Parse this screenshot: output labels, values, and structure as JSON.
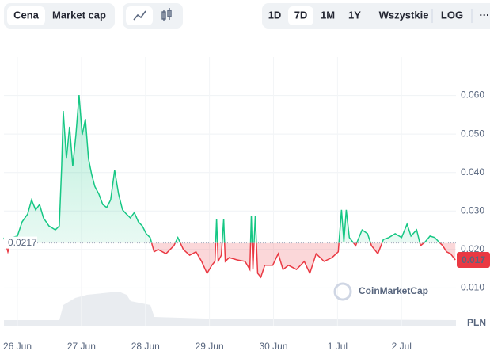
{
  "toolbar": {
    "tabs": [
      "Cena",
      "Market cap"
    ],
    "ranges": [
      "1D",
      "7D",
      "1M",
      "1Y",
      "Wszystkie",
      "LOG"
    ],
    "more": "···"
  },
  "chart_data": {
    "type": "line",
    "x": [
      -0.21,
      -0.148,
      -0.086,
      0,
      0.074,
      0.16,
      0.222,
      0.284,
      0.346,
      0.407,
      0.494,
      0.593,
      0.654,
      0.691,
      0.716,
      0.765,
      0.815,
      0.864,
      0.914,
      0.963,
      1.012,
      1.062,
      1.111,
      1.16,
      1.21,
      1.272,
      1.333,
      1.395,
      1.457,
      1.519,
      1.58,
      1.642,
      1.704,
      1.765,
      1.827,
      1.889,
      1.951,
      2.012,
      2.074,
      2.136,
      2.198,
      2.321,
      2.444,
      2.506,
      2.593,
      2.691,
      2.79,
      2.877,
      2.963,
      3.037,
      3.086,
      3.111,
      3.136,
      3.185,
      3.222,
      3.247,
      3.309,
      3.432,
      3.556,
      3.63,
      3.654,
      3.679,
      3.716,
      3.753,
      3.802,
      3.864,
      3.988,
      4.074,
      4.148,
      4.235,
      4.358,
      4.481,
      4.568,
      4.667,
      4.79,
      4.914,
      5.012,
      5.062,
      5.099,
      5.136,
      5.185,
      5.284,
      5.383,
      5.469,
      5.531,
      5.63,
      5.716,
      5.802,
      5.901,
      6.0,
      6.086,
      6.148,
      6.235,
      6.296,
      6.37,
      6.444,
      6.519,
      6.58,
      6.642,
      6.704,
      6.765,
      6.84
    ],
    "values": [
      0.0231,
      0.0194,
      0.0231,
      0.0235,
      0.0272,
      0.0292,
      0.0329,
      0.0303,
      0.0317,
      0.0282,
      0.0261,
      0.0251,
      0.0261,
      0.0416,
      0.056,
      0.0436,
      0.0519,
      0.0416,
      0.0498,
      0.0601,
      0.0498,
      0.0539,
      0.0436,
      0.0395,
      0.0364,
      0.0344,
      0.0317,
      0.0309,
      0.0329,
      0.0406,
      0.0344,
      0.0303,
      0.0292,
      0.0282,
      0.0296,
      0.0272,
      0.0261,
      0.0241,
      0.0231,
      0.0194,
      0.02,
      0.0189,
      0.021,
      0.0231,
      0.02,
      0.0185,
      0.0194,
      0.0169,
      0.0138,
      0.0159,
      0.0169,
      0.028,
      0.0169,
      0.0185,
      0.028,
      0.0169,
      0.0179,
      0.0173,
      0.0169,
      0.0148,
      0.0288,
      0.0148,
      0.0288,
      0.0138,
      0.0128,
      0.0159,
      0.0159,
      0.0189,
      0.0148,
      0.0159,
      0.0148,
      0.0169,
      0.0138,
      0.0189,
      0.0169,
      0.0179,
      0.0194,
      0.0303,
      0.022,
      0.0303,
      0.0231,
      0.021,
      0.0251,
      0.0241,
      0.021,
      0.0189,
      0.0226,
      0.0231,
      0.0241,
      0.0231,
      0.0266,
      0.0235,
      0.0251,
      0.021,
      0.022,
      0.0235,
      0.0231,
      0.022,
      0.021,
      0.0194,
      0.0189,
      0.0173
    ],
    "baseline": 0.0217,
    "last_label": "0.017",
    "up_color": "#16c784",
    "down_color": "#ea3943",
    "xlim": [
      -0.21,
      6.85
    ],
    "xticks": [
      {
        "value": 0,
        "label": "26 Jun"
      },
      {
        "value": 1,
        "label": "27 Jun"
      },
      {
        "value": 2,
        "label": "28 Jun"
      },
      {
        "value": 3,
        "label": "29 Jun"
      },
      {
        "value": 4,
        "label": "30 Jun"
      },
      {
        "value": 5,
        "label": "1 Jul"
      },
      {
        "value": 6,
        "label": "2 Jul"
      }
    ],
    "ylim": [
      0,
      0.07
    ],
    "yticks": [
      {
        "value": 0.01,
        "label": "0.010"
      },
      {
        "value": 0.02,
        "label": "0.020"
      },
      {
        "value": 0.03,
        "label": "0.030"
      },
      {
        "value": 0.04,
        "label": "0.040"
      },
      {
        "value": 0.05,
        "label": "0.050"
      },
      {
        "value": 0.06,
        "label": "0.060"
      }
    ],
    "grid": true,
    "currency": "PLN",
    "watermark": "CoinMarketCap"
  }
}
